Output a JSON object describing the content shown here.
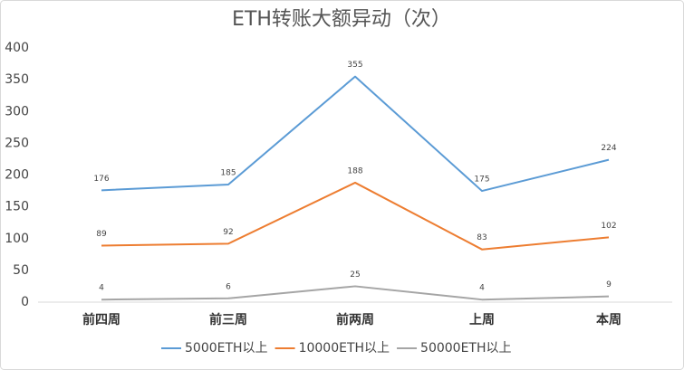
{
  "chart_data": {
    "type": "line",
    "title": "ETH转账大额异动（次）",
    "categories": [
      "前四周",
      "前三周",
      "前两周",
      "上周",
      "本周"
    ],
    "series": [
      {
        "name": "5000ETH以上",
        "color": "#5b9bd5",
        "values": [
          176,
          185,
          355,
          175,
          224
        ]
      },
      {
        "name": "10000ETH以上",
        "color": "#ed7d31",
        "values": [
          89,
          92,
          188,
          83,
          102
        ]
      },
      {
        "name": "50000ETH以上",
        "color": "#a5a5a5",
        "values": [
          4,
          6,
          25,
          4,
          9
        ]
      }
    ],
    "ylim": [
      0,
      400
    ],
    "yticks": [
      0,
      50,
      100,
      150,
      200,
      250,
      300,
      350,
      400
    ],
    "grid": false
  }
}
